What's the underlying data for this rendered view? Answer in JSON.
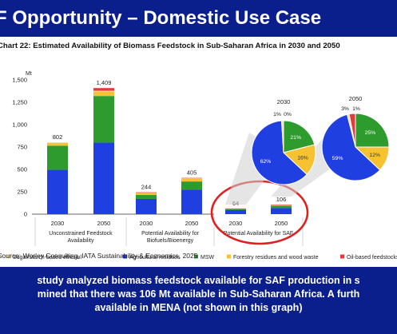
{
  "slide": {
    "title": "F Opportunity – Domestic Use Case",
    "source": "Source: Worley Consulting, IATA Sustainability & Economics, 2025",
    "bottom_lines": [
      "study analyzed biomass feedstock available for SAF production in s",
      "mined that there was 106 Mt available in Sub-Saharan Africa. A furth",
      "available in MENA (not shown in this graph)"
    ]
  },
  "colors": {
    "background": "#0b1f8c",
    "sugar": "#f3d9a6",
    "agricultural": "#1f3fe0",
    "msw": "#2e9b2e",
    "forestry": "#f6c232",
    "oilseed": "#e13b3b",
    "highlight": "#e02020",
    "connector": "#cfcfcf"
  },
  "chart_data": [
    {
      "type": "bar",
      "stacked": true,
      "title": "Chart 22: Estimated Availability of Biomass Feedstock in Sub-Saharan Africa in 2030 and 2050",
      "unit_label": "Mt",
      "ylim": [
        0,
        1500
      ],
      "yticks": [
        "1,500",
        "1,250",
        "1,000",
        "750",
        "500",
        "250",
        "0"
      ],
      "ytick_values": [
        1500,
        1250,
        1000,
        750,
        500,
        250,
        0
      ],
      "categories": [
        "2030",
        "2050",
        "2030",
        "2050",
        "2030",
        "2050"
      ],
      "groups": [
        "Unconstrained Feedstock Availability",
        "Potential Availability for Biofuels/Bioenergy",
        "Potential Availability for SAF"
      ],
      "group_label_lines": [
        [
          "Unconstrained Feedstock",
          "Availability"
        ],
        [
          "Potential Availability for",
          "Biofuels/Bioenergy"
        ],
        [
          "Potential Availability for SAF"
        ]
      ],
      "totals": [
        "802",
        "1,409",
        "244",
        "405",
        "64",
        "106"
      ],
      "series": [
        {
          "name": "Agricultural residues",
          "values": [
            495,
            800,
            170,
            275,
            45,
            68
          ]
        },
        {
          "name": "MSW",
          "values": [
            270,
            520,
            45,
            90,
            12,
            25
          ]
        },
        {
          "name": "Forestry residues and wood waste",
          "values": [
            30,
            50,
            25,
            30,
            5,
            10
          ]
        },
        {
          "name": "Sugar/starch-based ethanol",
          "values": [
            7,
            9,
            2,
            5,
            1,
            1
          ]
        },
        {
          "name": "Oil-based feedstocks",
          "values": [
            0,
            30,
            2,
            5,
            1,
            2
          ]
        }
      ],
      "legend": [
        {
          "name": "Sugar/starch-based ethanol",
          "color": "#f3d9a6"
        },
        {
          "name": "Agricultural residues",
          "color": "#1f3fe0"
        },
        {
          "name": "MSW",
          "color": "#2e9b2e"
        },
        {
          "name": "Forestry residues and wood waste",
          "color": "#f6c232"
        },
        {
          "name": "Oil-based feedstocks",
          "color": "#e13b3b"
        }
      ],
      "legend_placement": "bottom"
    },
    {
      "type": "pie",
      "title": "2030",
      "slices": [
        {
          "name": "Agricultural residues",
          "value": 62,
          "label": "62%"
        },
        {
          "name": "MSW",
          "value": 21,
          "label": "21%"
        },
        {
          "name": "Forestry residues and wood waste",
          "value": 16,
          "label": "16%"
        },
        {
          "name": "Sugar/starch-based ethanol",
          "value": 1,
          "label": "1%"
        },
        {
          "name": "Oil-based feedstocks",
          "value": 0,
          "label": "0%"
        }
      ]
    },
    {
      "type": "pie",
      "title": "2050",
      "slices": [
        {
          "name": "Agricultural residues",
          "value": 59,
          "label": "59%"
        },
        {
          "name": "MSW",
          "value": 25,
          "label": "25%"
        },
        {
          "name": "Forestry residues and wood waste",
          "value": 12,
          "label": "12%"
        },
        {
          "name": "Sugar/starch-based ethanol",
          "value": 1,
          "label": "1%"
        },
        {
          "name": "Oil-based feedstocks",
          "value": 3,
          "label": "3%"
        }
      ]
    }
  ]
}
